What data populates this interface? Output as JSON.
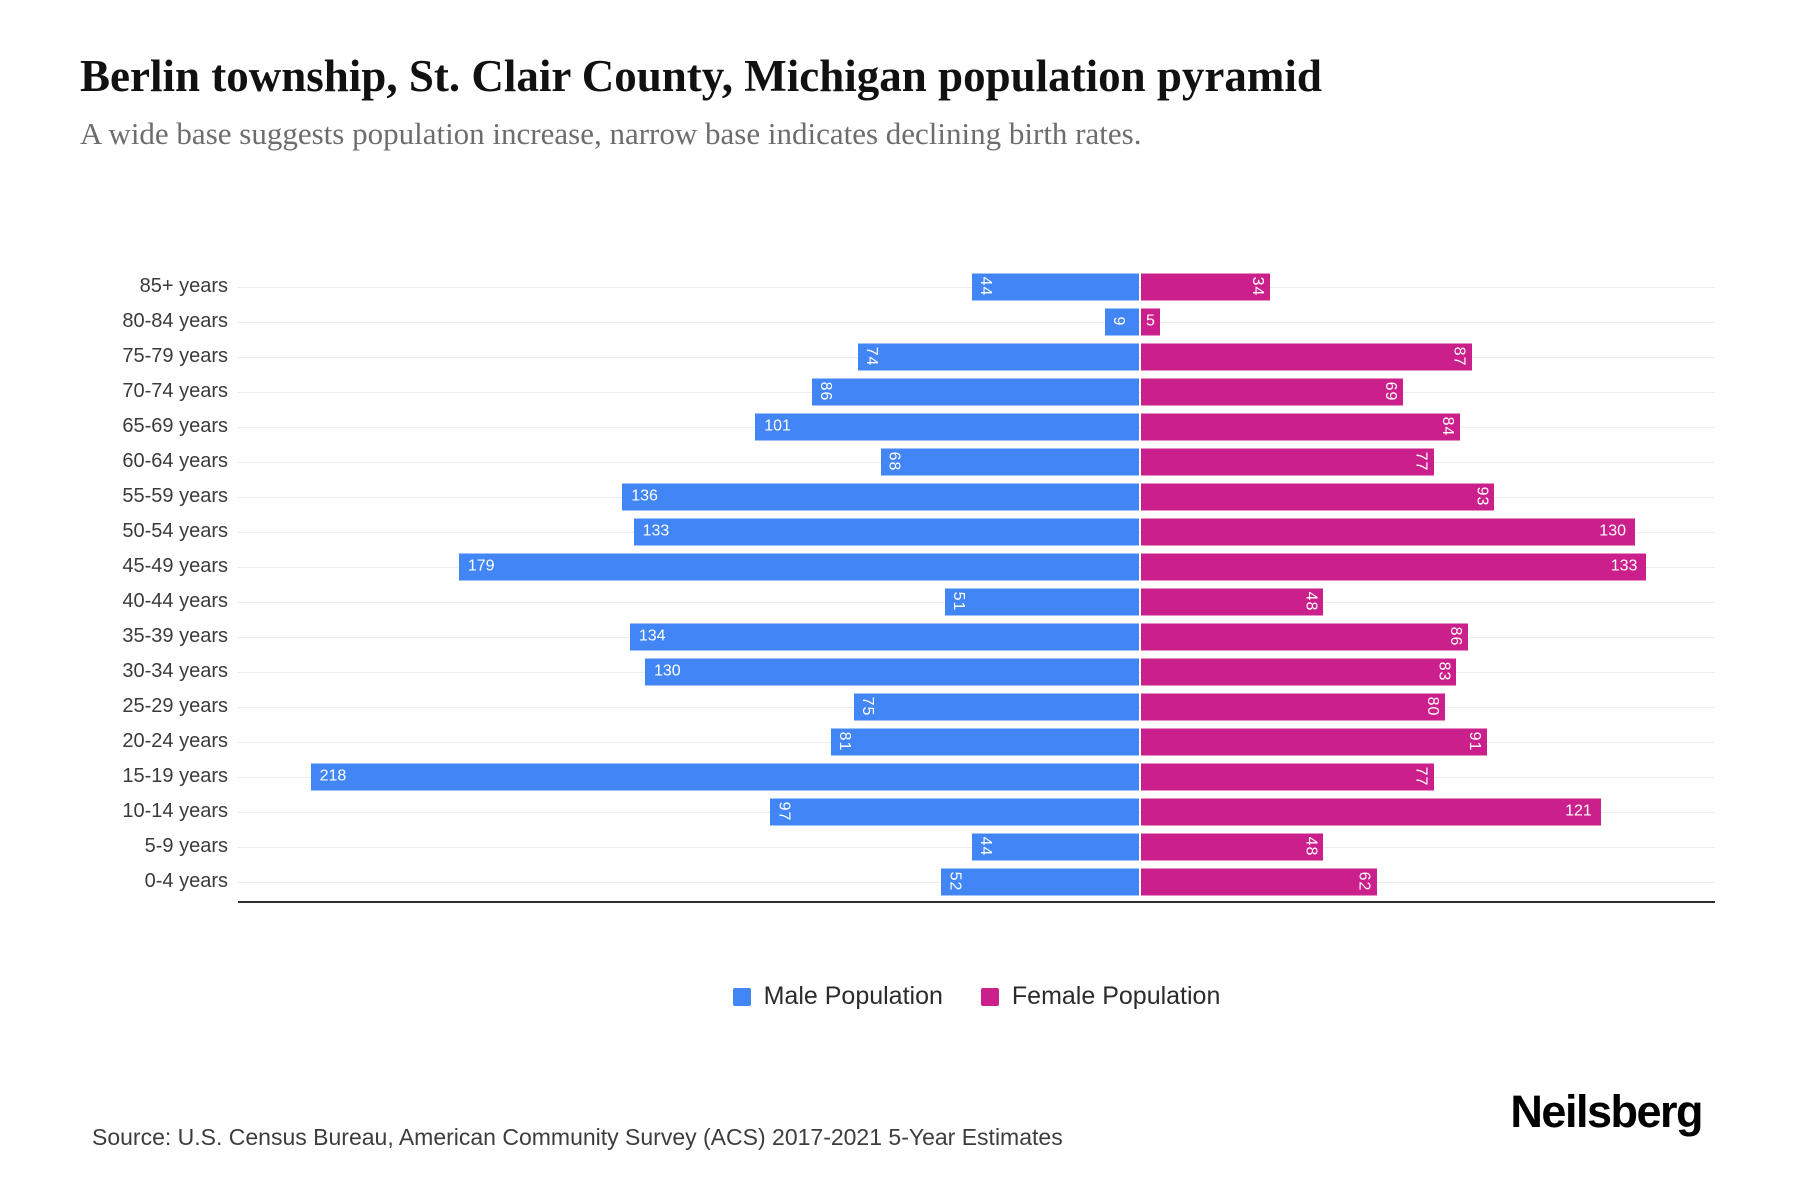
{
  "header": {
    "title": "Berlin township, St. Clair County, Michigan population pyramid",
    "subtitle": "A wide base suggests population increase, narrow base indicates declining birth rates."
  },
  "chart_data": {
    "type": "bar",
    "variant": "population-pyramid",
    "title": "Berlin township, St. Clair County, Michigan population pyramid",
    "categories": [
      "85+ years",
      "80-84 years",
      "75-79 years",
      "70-74 years",
      "65-69 years",
      "60-64 years",
      "55-59 years",
      "50-54 years",
      "45-49 years",
      "40-44 years",
      "35-39 years",
      "30-34 years",
      "25-29 years",
      "20-24 years",
      "15-19 years",
      "10-14 years",
      "5-9 years",
      "0-4 years"
    ],
    "series": [
      {
        "name": "Male Population",
        "side": "left",
        "color": "#4285F4",
        "values": [
          44,
          9,
          74,
          86,
          101,
          68,
          136,
          133,
          179,
          51,
          134,
          130,
          75,
          81,
          218,
          97,
          44,
          52
        ]
      },
      {
        "name": "Female Population",
        "side": "right",
        "color": "#CB1F8B",
        "values": [
          34,
          5,
          87,
          69,
          84,
          77,
          93,
          130,
          133,
          48,
          86,
          83,
          80,
          91,
          77,
          121,
          48,
          62
        ]
      }
    ],
    "male_axis_max": 237,
    "female_axis_max": 151,
    "xlabel": "",
    "ylabel": "",
    "grid": "horizontal-row-lines",
    "gridline_color": "#ededed",
    "axis_line_color": "#2f2f2f",
    "value_labels": "white, inside bar at outer end, rotated 90deg when 1-2 digits (except female 5)",
    "legend_position": "bottom-center"
  },
  "footer": {
    "source": "Source: U.S. Census Bureau, American Community Survey (ACS) 2017-2021 5-Year Estimates",
    "logo": "Neilsberg"
  }
}
